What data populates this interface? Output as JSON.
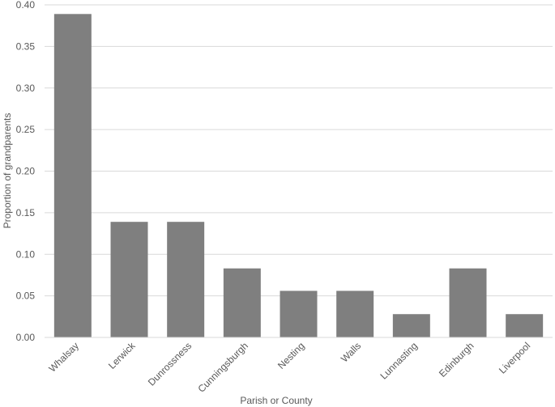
{
  "chart_data": {
    "type": "bar",
    "title": "",
    "xlabel": "Parish or County",
    "ylabel": "Proportion of grandparents",
    "categories": [
      "Whalsay",
      "Lerwick",
      "Dunrossness",
      "Cunningsburgh",
      "Nesting",
      "Walls",
      "Lunnasting",
      "Edinburgh",
      "Liverpool"
    ],
    "values": [
      0.389,
      0.139,
      0.139,
      0.083,
      0.056,
      0.056,
      0.028,
      0.083,
      0.028
    ],
    "ylim": [
      0,
      0.4
    ],
    "yticks": [
      "0.00",
      "0.05",
      "0.10",
      "0.15",
      "0.20",
      "0.25",
      "0.30",
      "0.35",
      "0.40"
    ],
    "grid": true,
    "legend": "none",
    "bar_color": "#7f7f7f"
  }
}
